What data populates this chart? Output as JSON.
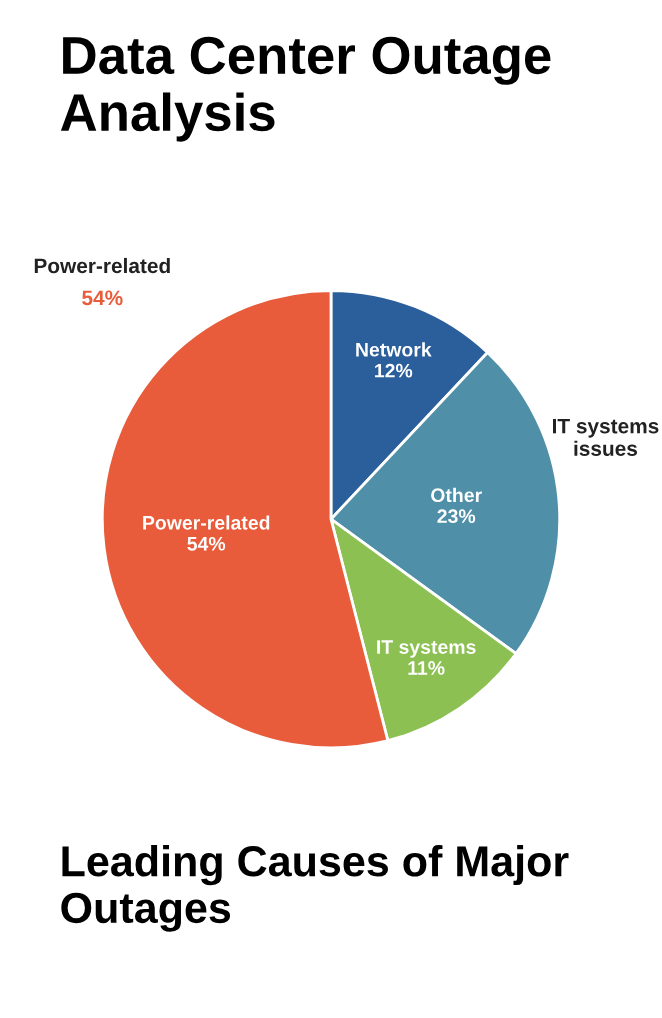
{
  "chart_data": {
    "type": "pie",
    "title": "Data Center Outage Analysis",
    "subtitle": "Leading Causes of Major Outages",
    "categories": [
      "Network",
      "Other",
      "IT systems",
      "Power-related"
    ],
    "values": [
      12,
      23,
      11,
      54
    ],
    "value_labels": [
      "12%",
      "23%",
      "11%",
      "54%"
    ],
    "colors": [
      "#2b5f9c",
      "#4f8fa8",
      "#8cc052",
      "#e85c3b"
    ],
    "annotations": [
      "Power-related",
      "54%",
      "IT systems issues"
    ],
    "legend": false
  }
}
